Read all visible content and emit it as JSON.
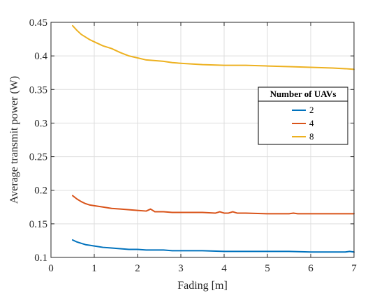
{
  "chart_data": {
    "type": "line",
    "title": "",
    "xlabel": "Fading [m]",
    "ylabel": "Average transmit power (W)",
    "xlim": [
      0,
      7
    ],
    "ylim": [
      0.1,
      0.45
    ],
    "xticks": [
      0,
      1,
      2,
      3,
      4,
      5,
      6,
      7
    ],
    "xtick_labels": [
      "0",
      "1",
      "2",
      "3",
      "4",
      "5",
      "6",
      "7"
    ],
    "yticks": [
      0.1,
      0.15,
      0.2,
      0.25,
      0.3,
      0.35,
      0.4,
      0.45
    ],
    "ytick_labels": [
      "0.1",
      "0.15",
      "0.2",
      "0.25",
      "0.3",
      "0.35",
      "0.4",
      "0.45"
    ],
    "grid": true,
    "legend": {
      "title": "Number of UAVs",
      "placement": "right"
    },
    "series": [
      {
        "name": "2",
        "color": "#0072BD",
        "x": [
          0.5,
          0.6,
          0.7,
          0.8,
          0.9,
          1.0,
          1.2,
          1.4,
          1.6,
          1.8,
          2.0,
          2.2,
          2.4,
          2.6,
          2.8,
          3.0,
          3.5,
          4.0,
          4.5,
          5.0,
          5.5,
          6.0,
          6.5,
          6.8,
          6.9,
          7.0
        ],
        "values": [
          0.126,
          0.123,
          0.121,
          0.119,
          0.118,
          0.117,
          0.115,
          0.114,
          0.113,
          0.112,
          0.112,
          0.111,
          0.111,
          0.111,
          0.11,
          0.11,
          0.11,
          0.109,
          0.109,
          0.109,
          0.109,
          0.108,
          0.108,
          0.108,
          0.109,
          0.108
        ]
      },
      {
        "name": "4",
        "color": "#D95319",
        "x": [
          0.5,
          0.6,
          0.7,
          0.8,
          0.9,
          1.0,
          1.2,
          1.4,
          1.6,
          1.8,
          2.0,
          2.2,
          2.3,
          2.4,
          2.6,
          2.8,
          3.0,
          3.5,
          3.8,
          3.9,
          4.0,
          4.1,
          4.2,
          4.3,
          4.5,
          5.0,
          5.5,
          5.6,
          5.7,
          6.0,
          6.5,
          7.0
        ],
        "values": [
          0.192,
          0.187,
          0.183,
          0.18,
          0.178,
          0.177,
          0.175,
          0.173,
          0.172,
          0.171,
          0.17,
          0.169,
          0.172,
          0.168,
          0.168,
          0.167,
          0.167,
          0.167,
          0.166,
          0.168,
          0.166,
          0.166,
          0.168,
          0.166,
          0.166,
          0.165,
          0.165,
          0.166,
          0.165,
          0.165,
          0.165,
          0.165
        ]
      },
      {
        "name": "8",
        "color": "#EDB120",
        "x": [
          0.5,
          0.6,
          0.7,
          0.8,
          0.9,
          1.0,
          1.2,
          1.4,
          1.6,
          1.8,
          2.0,
          2.2,
          2.4,
          2.6,
          2.8,
          3.0,
          3.5,
          4.0,
          4.5,
          5.0,
          5.5,
          6.0,
          6.5,
          6.8,
          7.0
        ],
        "values": [
          0.445,
          0.438,
          0.432,
          0.428,
          0.424,
          0.421,
          0.415,
          0.411,
          0.405,
          0.4,
          0.397,
          0.394,
          0.393,
          0.392,
          0.39,
          0.389,
          0.387,
          0.386,
          0.386,
          0.385,
          0.384,
          0.383,
          0.382,
          0.381,
          0.38
        ]
      }
    ]
  }
}
